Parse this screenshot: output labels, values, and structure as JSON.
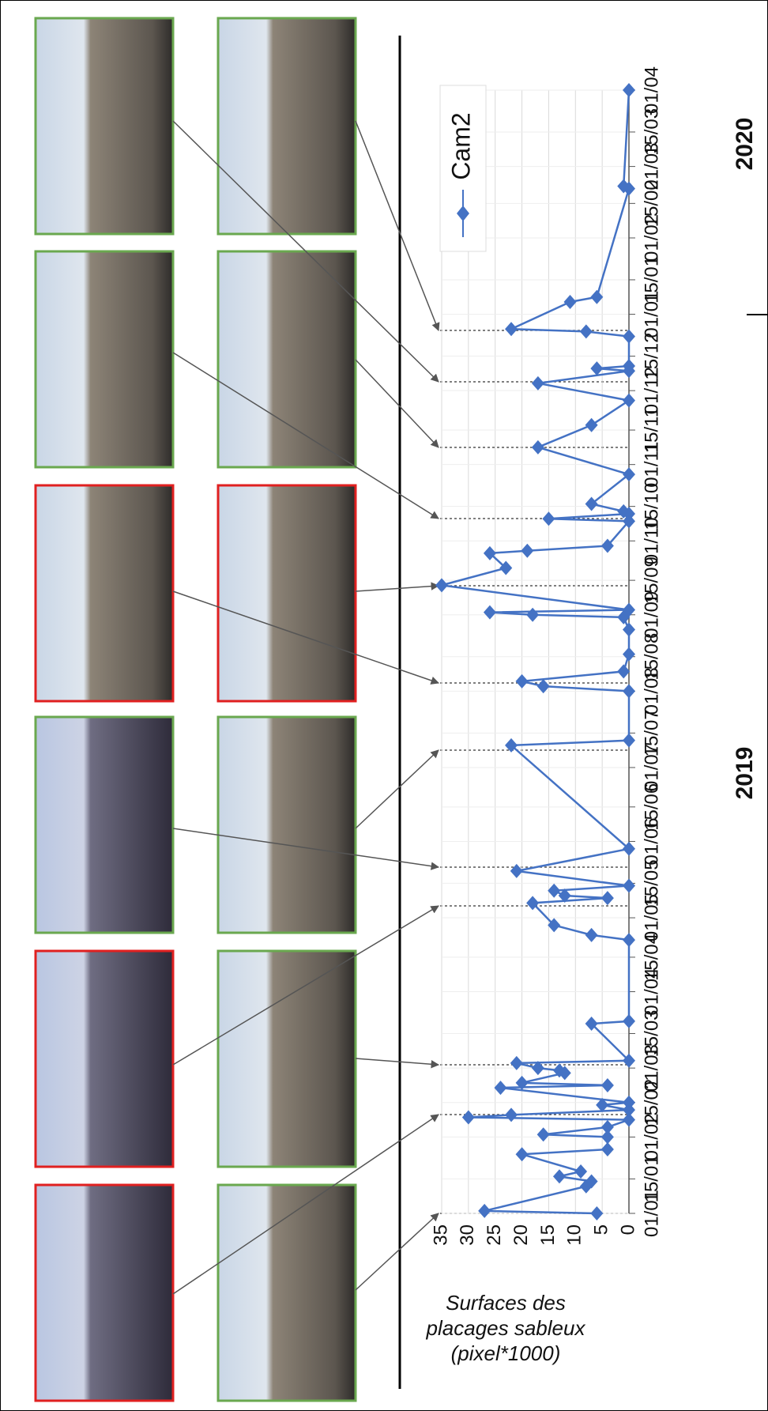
{
  "chart_data": {
    "type": "line",
    "y_label": [
      "Surfaces des",
      "placages sableux",
      "(pixel*1000)"
    ],
    "year_labels": [
      "2019",
      "2020"
    ],
    "x": [
      "2019-01-01",
      "2019-01-02",
      "2019-01-12",
      "2019-01-14",
      "2019-01-16",
      "2019-01-18",
      "2019-01-25",
      "2019-01-27",
      "2019-02-01",
      "2019-02-02",
      "2019-02-05",
      "2019-02-08",
      "2019-02-09",
      "2019-02-10",
      "2019-02-12",
      "2019-02-14",
      "2019-02-15",
      "2019-02-21",
      "2019-02-22",
      "2019-02-23",
      "2019-02-27",
      "2019-02-28",
      "2019-03-01",
      "2019-03-03",
      "2019-03-04",
      "2019-03-19",
      "2019-03-20",
      "2019-04-22",
      "2019-04-24",
      "2019-04-28",
      "2019-05-07",
      "2019-05-09",
      "2019-05-10",
      "2019-05-12",
      "2019-05-14",
      "2019-05-20",
      "2019-05-29",
      "2019-07-10",
      "2019-07-12",
      "2019-08-01",
      "2019-08-03",
      "2019-08-05",
      "2019-08-09",
      "2019-08-16",
      "2019-08-26",
      "2019-08-31",
      "2019-09-01",
      "2019-09-02",
      "2019-09-03",
      "2019-09-13",
      "2019-09-20",
      "2019-09-26",
      "2019-09-27",
      "2019-09-29",
      "2019-10-09",
      "2019-10-10",
      "2019-10-12",
      "2019-10-13",
      "2019-10-16",
      "2019-10-28",
      "2019-11-08",
      "2019-11-17",
      "2019-11-27",
      "2019-12-04",
      "2019-12-09",
      "2019-12-10",
      "2019-12-11",
      "2019-12-23",
      "2019-12-25",
      "2019-12-26",
      "2020-01-06",
      "2020-01-08",
      "2020-02-21",
      "2020-02-22",
      "2020-04-01"
    ],
    "series": [
      {
        "name": "Cam2",
        "color": "#4472c4",
        "values": [
          6,
          27,
          8,
          7,
          13,
          9,
          20,
          4,
          4,
          16,
          4,
          0,
          30,
          22,
          0,
          5,
          0,
          24,
          4,
          20,
          12,
          13,
          17,
          21,
          0,
          7,
          0,
          0,
          7,
          14,
          18,
          4,
          12,
          14,
          0,
          21,
          0,
          22,
          0,
          0,
          16,
          20,
          1,
          0,
          0,
          1,
          18,
          26,
          0,
          35,
          23,
          26,
          19,
          4,
          0,
          15,
          0,
          1,
          7,
          0,
          17,
          7,
          0,
          17,
          0,
          6,
          0,
          0,
          8,
          22,
          11,
          6,
          0,
          1,
          0
        ]
      }
    ],
    "xlim": [
      "2019-01-01",
      "2020-04-01"
    ],
    "xticks": [
      {
        "value": "2019-01-01",
        "label": "01/01"
      },
      {
        "value": "2019-01-15",
        "label": "15/01"
      },
      {
        "value": "2019-02-01",
        "label": "01/02"
      },
      {
        "value": "2019-02-15",
        "label": "15/02"
      },
      {
        "value": "2019-03-01",
        "label": "01/03"
      },
      {
        "value": "2019-03-15",
        "label": "15/03"
      },
      {
        "value": "2019-04-01",
        "label": "01/04"
      },
      {
        "value": "2019-04-15",
        "label": "15/04"
      },
      {
        "value": "2019-05-01",
        "label": "01/05"
      },
      {
        "value": "2019-05-15",
        "label": "15/05"
      },
      {
        "value": "2019-06-01",
        "label": "01/06"
      },
      {
        "value": "2019-06-15",
        "label": "15/06"
      },
      {
        "value": "2019-07-01",
        "label": "01/07"
      },
      {
        "value": "2019-07-15",
        "label": "15/07"
      },
      {
        "value": "2019-08-01",
        "label": "01/08"
      },
      {
        "value": "2019-08-15",
        "label": "15/08"
      },
      {
        "value": "2019-09-01",
        "label": "01/09"
      },
      {
        "value": "2019-09-15",
        "label": "15/09"
      },
      {
        "value": "2019-10-01",
        "label": "01/10"
      },
      {
        "value": "2019-10-15",
        "label": "15/10"
      },
      {
        "value": "2019-11-01",
        "label": "01/11"
      },
      {
        "value": "2019-11-15",
        "label": "15/11"
      },
      {
        "value": "2019-12-01",
        "label": "01/12"
      },
      {
        "value": "2019-12-15",
        "label": "15/12"
      },
      {
        "value": "2020-01-01",
        "label": "01/01"
      },
      {
        "value": "2020-01-15",
        "label": "15/01"
      },
      {
        "value": "2020-02-01",
        "label": "01/02"
      },
      {
        "value": "2020-02-15",
        "label": "15/02"
      },
      {
        "value": "2020-03-01",
        "label": "01/03"
      },
      {
        "value": "2020-03-15",
        "label": "15/03"
      },
      {
        "value": "2020-04-01",
        "label": "01/04"
      }
    ],
    "ylim": [
      0,
      35
    ],
    "yticks": [
      0,
      5,
      10,
      15,
      20,
      25,
      30,
      35
    ],
    "grid": true
  }
}
